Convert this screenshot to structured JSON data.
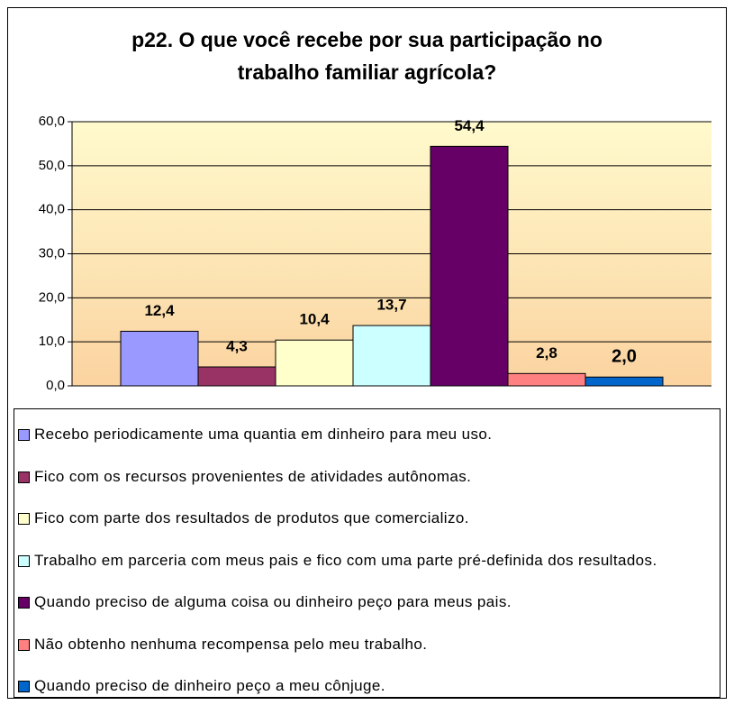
{
  "chart_data": {
    "type": "bar",
    "title": "p22. O que você recebe por sua participação no trabalho familiar agrícola?",
    "categories": [
      null
    ],
    "series": [
      {
        "name": "Recebo periodicamente uma quantia em dinheiro para meu uso.",
        "color": "#9999ff",
        "values": [
          12.4
        ],
        "value_labels": [
          "12,4"
        ]
      },
      {
        "name": "Fico com os recursos provenientes de atividades autônomas.",
        "color": "#993366",
        "values": [
          4.3
        ],
        "value_labels": [
          "4,3"
        ]
      },
      {
        "name": "Fico com parte dos resultados de produtos que comercializo.",
        "color": "#ffffcc",
        "values": [
          10.4
        ],
        "value_labels": [
          "10,4"
        ]
      },
      {
        "name": "Trabalho em parceria com meus pais e fico com uma parte pré-definida dos resultados.",
        "color": "#ccffff",
        "values": [
          13.7
        ],
        "value_labels": [
          "13,7"
        ]
      },
      {
        "name": "Quando preciso de alguma coisa ou dinheiro peço para meus pais.",
        "color": "#660066",
        "values": [
          54.4
        ],
        "value_labels": [
          "54,4"
        ]
      },
      {
        "name": "Não obtenho nenhuma recompensa pelo meu trabalho.",
        "color": "#ff8080",
        "values": [
          2.8
        ],
        "value_labels": [
          "2,8"
        ]
      },
      {
        "name": "Quando preciso de dinheiro peço a meu cônjuge.",
        "color": "#0066cc",
        "values": [
          2.0
        ],
        "value_labels": [
          "2,0"
        ]
      }
    ],
    "ylim": [
      0,
      60
    ],
    "yticks": [
      {
        "value": 0,
        "label": "0,0"
      },
      {
        "value": 10,
        "label": "10,0"
      },
      {
        "value": 20,
        "label": "20,0"
      },
      {
        "value": 30,
        "label": "30,0"
      },
      {
        "value": 40,
        "label": "40,0"
      },
      {
        "value": 50,
        "label": "50,0"
      },
      {
        "value": 60,
        "label": "60,0"
      }
    ],
    "grid": true,
    "legend": "bottom"
  }
}
